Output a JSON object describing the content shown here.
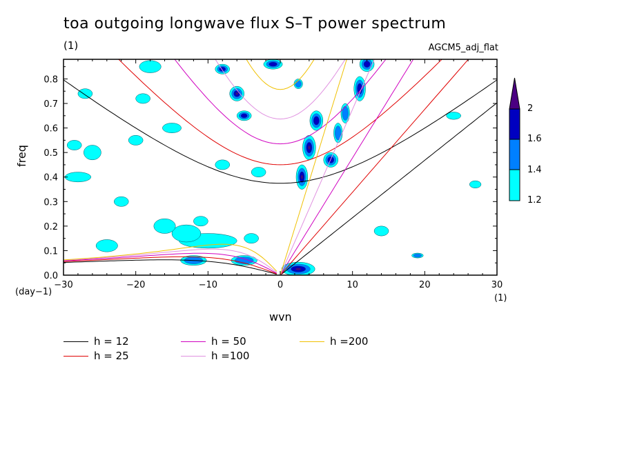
{
  "title": "toa outgoing longwave flux S–T power spectrum",
  "subtitle": "(1)",
  "model": "AGCM5_adj_flat",
  "chart_data": {
    "type": "heatmap",
    "title": "toa outgoing longwave flux S–T power spectrum",
    "xlabel": "wvn",
    "ylabel": "freq",
    "x_unit": "(1)",
    "y_unit": "(day−1)",
    "xlim": [
      -30,
      30
    ],
    "ylim": [
      0,
      0.88
    ],
    "xticks": [
      -30,
      -20,
      -10,
      0,
      10,
      20,
      30
    ],
    "yticks": [
      0.0,
      0.1,
      0.2,
      0.3,
      0.4,
      0.5,
      0.6,
      0.7,
      0.8
    ],
    "xtick_labels": [
      "−30",
      "−20",
      "−10",
      "0",
      "10",
      "20",
      "30"
    ],
    "ytick_labels": [
      "0.0",
      "0.1",
      "0.2",
      "0.3",
      "0.4",
      "0.5",
      "0.6",
      "0.7",
      "0.8"
    ],
    "contour_levels": [
      1.2,
      1.4,
      1.6,
      2
    ],
    "colorbar_labels": [
      "1.2",
      "1.4",
      "1.6",
      "2"
    ],
    "level_colors": [
      "#00ffff",
      "#0080ff",
      "#0000c0",
      "#4b0082"
    ],
    "dispersion_curves": [
      {
        "name": "h = 12",
        "h": 12,
        "color": "#000000"
      },
      {
        "name": "h = 25",
        "h": 25,
        "color": "#e00000"
      },
      {
        "name": "h = 50",
        "h": 50,
        "color": "#d000c0"
      },
      {
        "name": "h =100",
        "h": 100,
        "color": "#e090e0"
      },
      {
        "name": "h =200",
        "h": 200,
        "color": "#f0c000"
      }
    ],
    "blobs": [
      {
        "x": 2.5,
        "y": 0.025,
        "sx": 2.3,
        "sy": 0.028,
        "level": 3
      },
      {
        "x": -5,
        "y": 0.06,
        "sx": 1.8,
        "sy": 0.02,
        "level": 1
      },
      {
        "x": -12,
        "y": 0.06,
        "sx": 1.8,
        "sy": 0.02,
        "level": 1
      },
      {
        "x": -10,
        "y": 0.14,
        "sx": 4,
        "sy": 0.03,
        "level": 0
      },
      {
        "x": -13,
        "y": 0.17,
        "sx": 2,
        "sy": 0.035,
        "level": 0
      },
      {
        "x": -16,
        "y": 0.2,
        "sx": 1.5,
        "sy": 0.03,
        "level": 0
      },
      {
        "x": 3,
        "y": 0.4,
        "sx": 0.8,
        "sy": 0.05,
        "level": 3
      },
      {
        "x": 4,
        "y": 0.52,
        "sx": 0.9,
        "sy": 0.05,
        "level": 3
      },
      {
        "x": 5,
        "y": 0.63,
        "sx": 0.9,
        "sy": 0.04,
        "level": 2
      },
      {
        "x": 7,
        "y": 0.47,
        "sx": 1,
        "sy": 0.03,
        "level": 2
      },
      {
        "x": 8,
        "y": 0.58,
        "sx": 0.6,
        "sy": 0.04,
        "level": 1
      },
      {
        "x": 9,
        "y": 0.66,
        "sx": 0.6,
        "sy": 0.04,
        "level": 1
      },
      {
        "x": 11,
        "y": 0.76,
        "sx": 0.8,
        "sy": 0.05,
        "level": 2
      },
      {
        "x": 12,
        "y": 0.86,
        "sx": 1,
        "sy": 0.03,
        "level": 2
      },
      {
        "x": -6,
        "y": 0.74,
        "sx": 1,
        "sy": 0.03,
        "level": 3
      },
      {
        "x": -5,
        "y": 0.65,
        "sx": 1,
        "sy": 0.02,
        "level": 2
      },
      {
        "x": -8,
        "y": 0.84,
        "sx": 1,
        "sy": 0.02,
        "level": 2
      },
      {
        "x": -1,
        "y": 0.86,
        "sx": 1.3,
        "sy": 0.02,
        "level": 2
      },
      {
        "x": 2.5,
        "y": 0.78,
        "sx": 0.6,
        "sy": 0.02,
        "level": 1
      },
      {
        "x": -28,
        "y": 0.4,
        "sx": 1.8,
        "sy": 0.02,
        "level": 0
      },
      {
        "x": -26,
        "y": 0.5,
        "sx": 1.2,
        "sy": 0.03,
        "level": 0
      },
      {
        "x": -28.5,
        "y": 0.53,
        "sx": 1,
        "sy": 0.02,
        "level": 0
      },
      {
        "x": -27,
        "y": 0.74,
        "sx": 1,
        "sy": 0.02,
        "level": 0
      },
      {
        "x": -24,
        "y": 0.12,
        "sx": 1.5,
        "sy": 0.025,
        "level": 0
      },
      {
        "x": -18,
        "y": 0.85,
        "sx": 1.5,
        "sy": 0.025,
        "level": 0
      },
      {
        "x": -8,
        "y": 0.45,
        "sx": 1,
        "sy": 0.02,
        "level": 0
      },
      {
        "x": -22,
        "y": 0.3,
        "sx": 1,
        "sy": 0.02,
        "level": 0
      },
      {
        "x": -15,
        "y": 0.6,
        "sx": 1.3,
        "sy": 0.02,
        "level": 0
      },
      {
        "x": -11,
        "y": 0.22,
        "sx": 1,
        "sy": 0.02,
        "level": 0
      },
      {
        "x": -19,
        "y": 0.72,
        "sx": 1,
        "sy": 0.02,
        "level": 0
      },
      {
        "x": -4,
        "y": 0.15,
        "sx": 1,
        "sy": 0.02,
        "level": 0
      },
      {
        "x": 14,
        "y": 0.18,
        "sx": 1,
        "sy": 0.02,
        "level": 0
      },
      {
        "x": 19,
        "y": 0.08,
        "sx": 0.8,
        "sy": 0.01,
        "level": 1
      },
      {
        "x": 24,
        "y": 0.65,
        "sx": 1,
        "sy": 0.015,
        "level": 0
      },
      {
        "x": 27,
        "y": 0.37,
        "sx": 0.8,
        "sy": 0.015,
        "level": 0
      },
      {
        "x": -3,
        "y": 0.42,
        "sx": 1,
        "sy": 0.02,
        "level": 0
      },
      {
        "x": -20,
        "y": 0.55,
        "sx": 1,
        "sy": 0.02,
        "level": 0
      }
    ]
  },
  "legend": {
    "items": [
      {
        "label": "h = 12",
        "color": "#000000"
      },
      {
        "label": "h = 25",
        "color": "#e00000"
      },
      {
        "label": "h = 50",
        "color": "#d000c0"
      },
      {
        "label": "h =100",
        "color": "#e090e0"
      },
      {
        "label": "h =200",
        "color": "#f0c000"
      }
    ]
  }
}
